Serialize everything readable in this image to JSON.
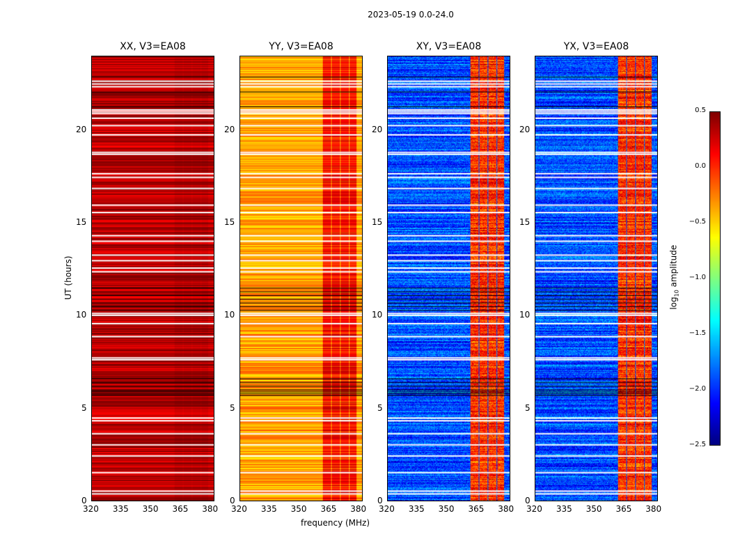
{
  "chart_data": {
    "type": "heatmap",
    "title": "2023-05-19 0.0-24.0",
    "xlabel": "frequency (MHz)",
    "ylabel": "UT (hours)",
    "xlim": [
      320,
      382
    ],
    "ylim": [
      0,
      24
    ],
    "xticks": [
      "320",
      "335",
      "350",
      "365",
      "380"
    ],
    "yticks": [
      "0",
      "5",
      "10",
      "15",
      "20"
    ],
    "colormap": "jet",
    "colorbar": {
      "label": "log10 amplitude",
      "label_main": "log",
      "label_sub": "10",
      "label_rest": " amplitude",
      "range": [
        -2.5,
        0.5
      ],
      "ticks": [
        "0.5",
        "0.0",
        "−0.5",
        "−1.0",
        "−1.5",
        "−2.0",
        "−2.5"
      ],
      "tick_values": [
        0.5,
        0.0,
        -0.5,
        -1.0,
        -1.5,
        -2.0,
        -2.5
      ]
    },
    "panels": [
      {
        "title": "XX, V3=EA08",
        "baseline": 0.35,
        "band_boost": 0.05,
        "show_ylabels": true
      },
      {
        "title": "YY, V3=EA08",
        "baseline": -0.35,
        "band_boost": 0.45,
        "show_ylabels": true
      },
      {
        "title": "XY, V3=EA08",
        "baseline": -1.9,
        "band_boost": 1.9,
        "show_ylabels": true
      },
      {
        "title": "YX, V3=EA08",
        "baseline": -1.9,
        "band_boost": 1.9,
        "show_ylabels": true
      }
    ],
    "band_regions_MHz": [
      [
        362,
        366
      ],
      [
        366.5,
        370.5
      ],
      [
        371,
        375
      ],
      [
        375.5,
        379
      ]
    ],
    "flagged_white_hours": [
      0.4,
      0.55,
      1.55,
      2.45,
      3.05,
      3.65,
      4.35,
      4.5,
      7.65,
      7.75,
      8.9,
      9.6,
      10.05,
      10.15,
      12.4,
      12.6,
      13.0,
      13.3,
      14.05,
      14.35,
      15.6,
      16.0,
      16.9,
      17.5,
      17.7,
      18.75,
      18.85,
      19.8,
      20.3,
      20.7,
      20.95,
      21.05,
      21.15,
      22.4,
      22.55,
      22.7
    ]
  }
}
